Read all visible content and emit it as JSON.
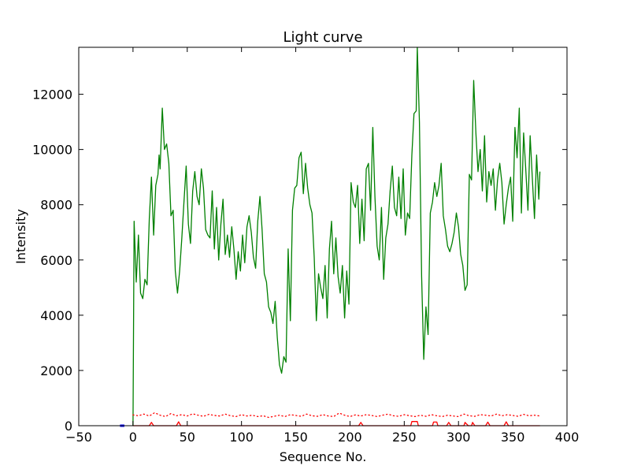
{
  "chart_data": {
    "type": "line",
    "title": "Light curve",
    "xlabel": "Sequence No.",
    "ylabel": "Intensity",
    "xlim": [
      -50,
      400
    ],
    "ylim": [
      0,
      13700
    ],
    "xticks": [
      -50,
      0,
      50,
      100,
      150,
      200,
      250,
      300,
      350,
      400
    ],
    "yticks": [
      0,
      2000,
      4000,
      6000,
      8000,
      10000,
      12000
    ],
    "grid": false,
    "legend": "none",
    "series": [
      {
        "color": "#008000",
        "style": "solid",
        "points": [
          [
            0,
            0
          ],
          [
            1,
            7400
          ],
          [
            3,
            5200
          ],
          [
            5,
            6900
          ],
          [
            7,
            4800
          ],
          [
            9,
            4600
          ],
          [
            11,
            5300
          ],
          [
            13,
            5100
          ],
          [
            15,
            7500
          ],
          [
            17,
            9000
          ],
          [
            19,
            6900
          ],
          [
            21,
            8700
          ],
          [
            23,
            9100
          ],
          [
            24,
            9800
          ],
          [
            25,
            9300
          ],
          [
            27,
            11500
          ],
          [
            29,
            10000
          ],
          [
            31,
            10200
          ],
          [
            33,
            9500
          ],
          [
            35,
            7600
          ],
          [
            37,
            7800
          ],
          [
            39,
            5600
          ],
          [
            41,
            4800
          ],
          [
            43,
            5600
          ],
          [
            45,
            6800
          ],
          [
            47,
            8100
          ],
          [
            49,
            9400
          ],
          [
            51,
            7300
          ],
          [
            53,
            6600
          ],
          [
            55,
            8500
          ],
          [
            57,
            9200
          ],
          [
            59,
            8300
          ],
          [
            61,
            8000
          ],
          [
            63,
            9300
          ],
          [
            65,
            8600
          ],
          [
            67,
            7100
          ],
          [
            69,
            6900
          ],
          [
            71,
            6800
          ],
          [
            73,
            8500
          ],
          [
            75,
            6400
          ],
          [
            77,
            7900
          ],
          [
            79,
            6000
          ],
          [
            81,
            7300
          ],
          [
            83,
            8200
          ],
          [
            85,
            6200
          ],
          [
            87,
            6900
          ],
          [
            89,
            6100
          ],
          [
            91,
            7200
          ],
          [
            93,
            6400
          ],
          [
            95,
            5300
          ],
          [
            97,
            6300
          ],
          [
            99,
            5600
          ],
          [
            101,
            6900
          ],
          [
            103,
            5900
          ],
          [
            105,
            7200
          ],
          [
            107,
            7600
          ],
          [
            109,
            7000
          ],
          [
            111,
            6100
          ],
          [
            113,
            5700
          ],
          [
            115,
            7400
          ],
          [
            117,
            8300
          ],
          [
            119,
            7100
          ],
          [
            121,
            5500
          ],
          [
            123,
            5200
          ],
          [
            125,
            4300
          ],
          [
            127,
            4100
          ],
          [
            129,
            3700
          ],
          [
            131,
            4500
          ],
          [
            133,
            3200
          ],
          [
            135,
            2200
          ],
          [
            137,
            1900
          ],
          [
            139,
            2500
          ],
          [
            141,
            2300
          ],
          [
            143,
            6400
          ],
          [
            145,
            3800
          ],
          [
            147,
            7800
          ],
          [
            149,
            8600
          ],
          [
            151,
            8700
          ],
          [
            153,
            9700
          ],
          [
            155,
            9900
          ],
          [
            157,
            8400
          ],
          [
            159,
            9500
          ],
          [
            161,
            8600
          ],
          [
            163,
            8000
          ],
          [
            165,
            7700
          ],
          [
            167,
            6100
          ],
          [
            169,
            3800
          ],
          [
            171,
            5500
          ],
          [
            173,
            5000
          ],
          [
            175,
            4600
          ],
          [
            177,
            5800
          ],
          [
            179,
            3900
          ],
          [
            181,
            6400
          ],
          [
            183,
            7400
          ],
          [
            185,
            5500
          ],
          [
            187,
            6800
          ],
          [
            189,
            5400
          ],
          [
            191,
            4800
          ],
          [
            193,
            5800
          ],
          [
            195,
            3900
          ],
          [
            197,
            5600
          ],
          [
            199,
            4400
          ],
          [
            201,
            8800
          ],
          [
            203,
            8100
          ],
          [
            205,
            7900
          ],
          [
            207,
            8700
          ],
          [
            209,
            6600
          ],
          [
            211,
            8200
          ],
          [
            213,
            6700
          ],
          [
            215,
            9300
          ],
          [
            217,
            9500
          ],
          [
            219,
            7800
          ],
          [
            221,
            10800
          ],
          [
            223,
            8300
          ],
          [
            225,
            6500
          ],
          [
            227,
            6000
          ],
          [
            229,
            7900
          ],
          [
            231,
            5300
          ],
          [
            233,
            6800
          ],
          [
            235,
            7300
          ],
          [
            237,
            8500
          ],
          [
            239,
            9400
          ],
          [
            241,
            7900
          ],
          [
            243,
            7600
          ],
          [
            245,
            9000
          ],
          [
            247,
            7500
          ],
          [
            249,
            9300
          ],
          [
            251,
            6900
          ],
          [
            253,
            7700
          ],
          [
            255,
            7500
          ],
          [
            257,
            9800
          ],
          [
            259,
            11300
          ],
          [
            261,
            11400
          ],
          [
            262,
            13700
          ],
          [
            264,
            11000
          ],
          [
            266,
            5400
          ],
          [
            268,
            2400
          ],
          [
            270,
            4300
          ],
          [
            272,
            3300
          ],
          [
            274,
            7700
          ],
          [
            276,
            8100
          ],
          [
            278,
            8800
          ],
          [
            280,
            8300
          ],
          [
            282,
            8700
          ],
          [
            284,
            9500
          ],
          [
            286,
            7600
          ],
          [
            288,
            7100
          ],
          [
            290,
            6500
          ],
          [
            292,
            6300
          ],
          [
            294,
            6600
          ],
          [
            296,
            7000
          ],
          [
            298,
            7700
          ],
          [
            300,
            7200
          ],
          [
            302,
            6200
          ],
          [
            304,
            5800
          ],
          [
            306,
            4900
          ],
          [
            308,
            5100
          ],
          [
            310,
            9100
          ],
          [
            312,
            8900
          ],
          [
            314,
            12500
          ],
          [
            316,
            10600
          ],
          [
            318,
            9200
          ],
          [
            320,
            10000
          ],
          [
            322,
            8500
          ],
          [
            324,
            10500
          ],
          [
            326,
            8100
          ],
          [
            328,
            9200
          ],
          [
            330,
            8700
          ],
          [
            332,
            9300
          ],
          [
            334,
            7800
          ],
          [
            336,
            8900
          ],
          [
            338,
            9500
          ],
          [
            340,
            8800
          ],
          [
            342,
            7300
          ],
          [
            344,
            8000
          ],
          [
            346,
            8600
          ],
          [
            348,
            9000
          ],
          [
            350,
            7400
          ],
          [
            352,
            10800
          ],
          [
            354,
            9700
          ],
          [
            356,
            11500
          ],
          [
            358,
            7700
          ],
          [
            360,
            10600
          ],
          [
            362,
            9300
          ],
          [
            364,
            7800
          ],
          [
            366,
            10500
          ],
          [
            368,
            9000
          ],
          [
            370,
            7500
          ],
          [
            372,
            9800
          ],
          [
            374,
            8200
          ],
          [
            375,
            9200
          ]
        ]
      },
      {
        "color": "#ff0000",
        "style": "dotted",
        "points": [
          [
            0,
            390
          ],
          [
            5,
            360
          ],
          [
            10,
            420
          ],
          [
            15,
            350
          ],
          [
            20,
            470
          ],
          [
            25,
            380
          ],
          [
            30,
            330
          ],
          [
            35,
            440
          ],
          [
            40,
            360
          ],
          [
            45,
            400
          ],
          [
            50,
            350
          ],
          [
            55,
            430
          ],
          [
            60,
            380
          ],
          [
            65,
            340
          ],
          [
            70,
            410
          ],
          [
            75,
            370
          ],
          [
            80,
            350
          ],
          [
            85,
            420
          ],
          [
            90,
            360
          ],
          [
            95,
            330
          ],
          [
            100,
            400
          ],
          [
            105,
            350
          ],
          [
            110,
            380
          ],
          [
            115,
            330
          ],
          [
            120,
            360
          ],
          [
            125,
            300
          ],
          [
            130,
            340
          ],
          [
            135,
            380
          ],
          [
            140,
            330
          ],
          [
            145,
            400
          ],
          [
            150,
            370
          ],
          [
            155,
            340
          ],
          [
            160,
            420
          ],
          [
            165,
            360
          ],
          [
            170,
            340
          ],
          [
            175,
            400
          ],
          [
            180,
            350
          ],
          [
            185,
            330
          ],
          [
            190,
            460
          ],
          [
            195,
            380
          ],
          [
            200,
            330
          ],
          [
            205,
            390
          ],
          [
            210,
            350
          ],
          [
            215,
            400
          ],
          [
            220,
            370
          ],
          [
            225,
            330
          ],
          [
            230,
            380
          ],
          [
            235,
            420
          ],
          [
            240,
            360
          ],
          [
            245,
            340
          ],
          [
            250,
            400
          ],
          [
            255,
            360
          ],
          [
            260,
            330
          ],
          [
            265,
            380
          ],
          [
            270,
            340
          ],
          [
            275,
            400
          ],
          [
            280,
            360
          ],
          [
            285,
            330
          ],
          [
            290,
            380
          ],
          [
            295,
            350
          ],
          [
            300,
            330
          ],
          [
            305,
            420
          ],
          [
            310,
            360
          ],
          [
            315,
            340
          ],
          [
            320,
            400
          ],
          [
            325,
            380
          ],
          [
            330,
            350
          ],
          [
            335,
            420
          ],
          [
            340,
            360
          ],
          [
            345,
            400
          ],
          [
            350,
            370
          ],
          [
            355,
            340
          ],
          [
            360,
            410
          ],
          [
            365,
            360
          ],
          [
            370,
            380
          ],
          [
            375,
            350
          ]
        ]
      },
      {
        "color": "#ff0000",
        "style": "solid",
        "points": [
          [
            0,
            0
          ],
          [
            15,
            0
          ],
          [
            17,
            120
          ],
          [
            19,
            0
          ],
          [
            40,
            0
          ],
          [
            42,
            140
          ],
          [
            44,
            0
          ],
          [
            208,
            0
          ],
          [
            210,
            120
          ],
          [
            212,
            0
          ],
          [
            256,
            0
          ],
          [
            257,
            150
          ],
          [
            262,
            150
          ],
          [
            263,
            0
          ],
          [
            276,
            0
          ],
          [
            277,
            130
          ],
          [
            280,
            130
          ],
          [
            281,
            0
          ],
          [
            289,
            0
          ],
          [
            291,
            120
          ],
          [
            293,
            0
          ],
          [
            305,
            0
          ],
          [
            306,
            120
          ],
          [
            309,
            0
          ],
          [
            312,
            0
          ],
          [
            313,
            120
          ],
          [
            315,
            0
          ],
          [
            325,
            0
          ],
          [
            327,
            130
          ],
          [
            329,
            0
          ],
          [
            342,
            0
          ],
          [
            344,
            140
          ],
          [
            346,
            0
          ],
          [
            375,
            0
          ]
        ]
      },
      {
        "color": "#0000ff",
        "style": "solid",
        "points": [
          [
            -12,
            0
          ],
          [
            -8,
            0
          ]
        ]
      }
    ]
  }
}
